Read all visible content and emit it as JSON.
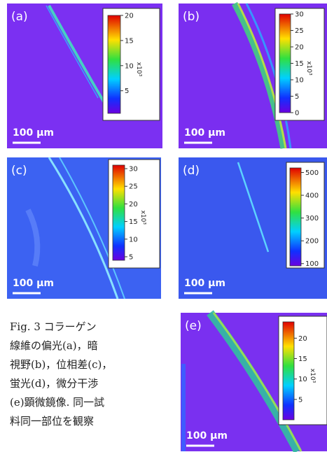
{
  "panels": [
    {
      "label": "(a)",
      "scale_bar": "100 μm",
      "colorbar": {
        "unit": "x10³",
        "lim": [
          0.5,
          20
        ],
        "ticks": [
          5,
          10,
          15,
          20
        ]
      }
    },
    {
      "label": "(b)",
      "scale_bar": "100 μm",
      "colorbar": {
        "unit": "x10³",
        "lim": [
          0,
          30
        ],
        "ticks": [
          0,
          5,
          10,
          15,
          20,
          25,
          30
        ]
      }
    },
    {
      "label": "(c)",
      "scale_bar": "100 μm",
      "colorbar": {
        "unit": "x10³",
        "lim": [
          4,
          31
        ],
        "ticks": [
          5,
          10,
          15,
          20,
          25,
          30
        ]
      }
    },
    {
      "label": "(d)",
      "scale_bar": "100 μm",
      "colorbar": {
        "lim": [
          90,
          520
        ],
        "ticks": [
          100,
          200,
          300,
          400,
          500
        ]
      }
    },
    {
      "label": "(e)",
      "scale_bar": "100 μm",
      "colorbar": {
        "unit": "x10³",
        "lim": [
          0,
          24
        ],
        "ticks": [
          5,
          10,
          15,
          20
        ]
      }
    }
  ],
  "caption": [
    "Fig. 3 コラーゲン",
    "線維の偏光(a)，暗",
    "視野(b)，位相差(c)，",
    "蛍光(d)，微分干渉",
    "(e)顕微鏡像. 同一試",
    "料同一部位を観察"
  ]
}
